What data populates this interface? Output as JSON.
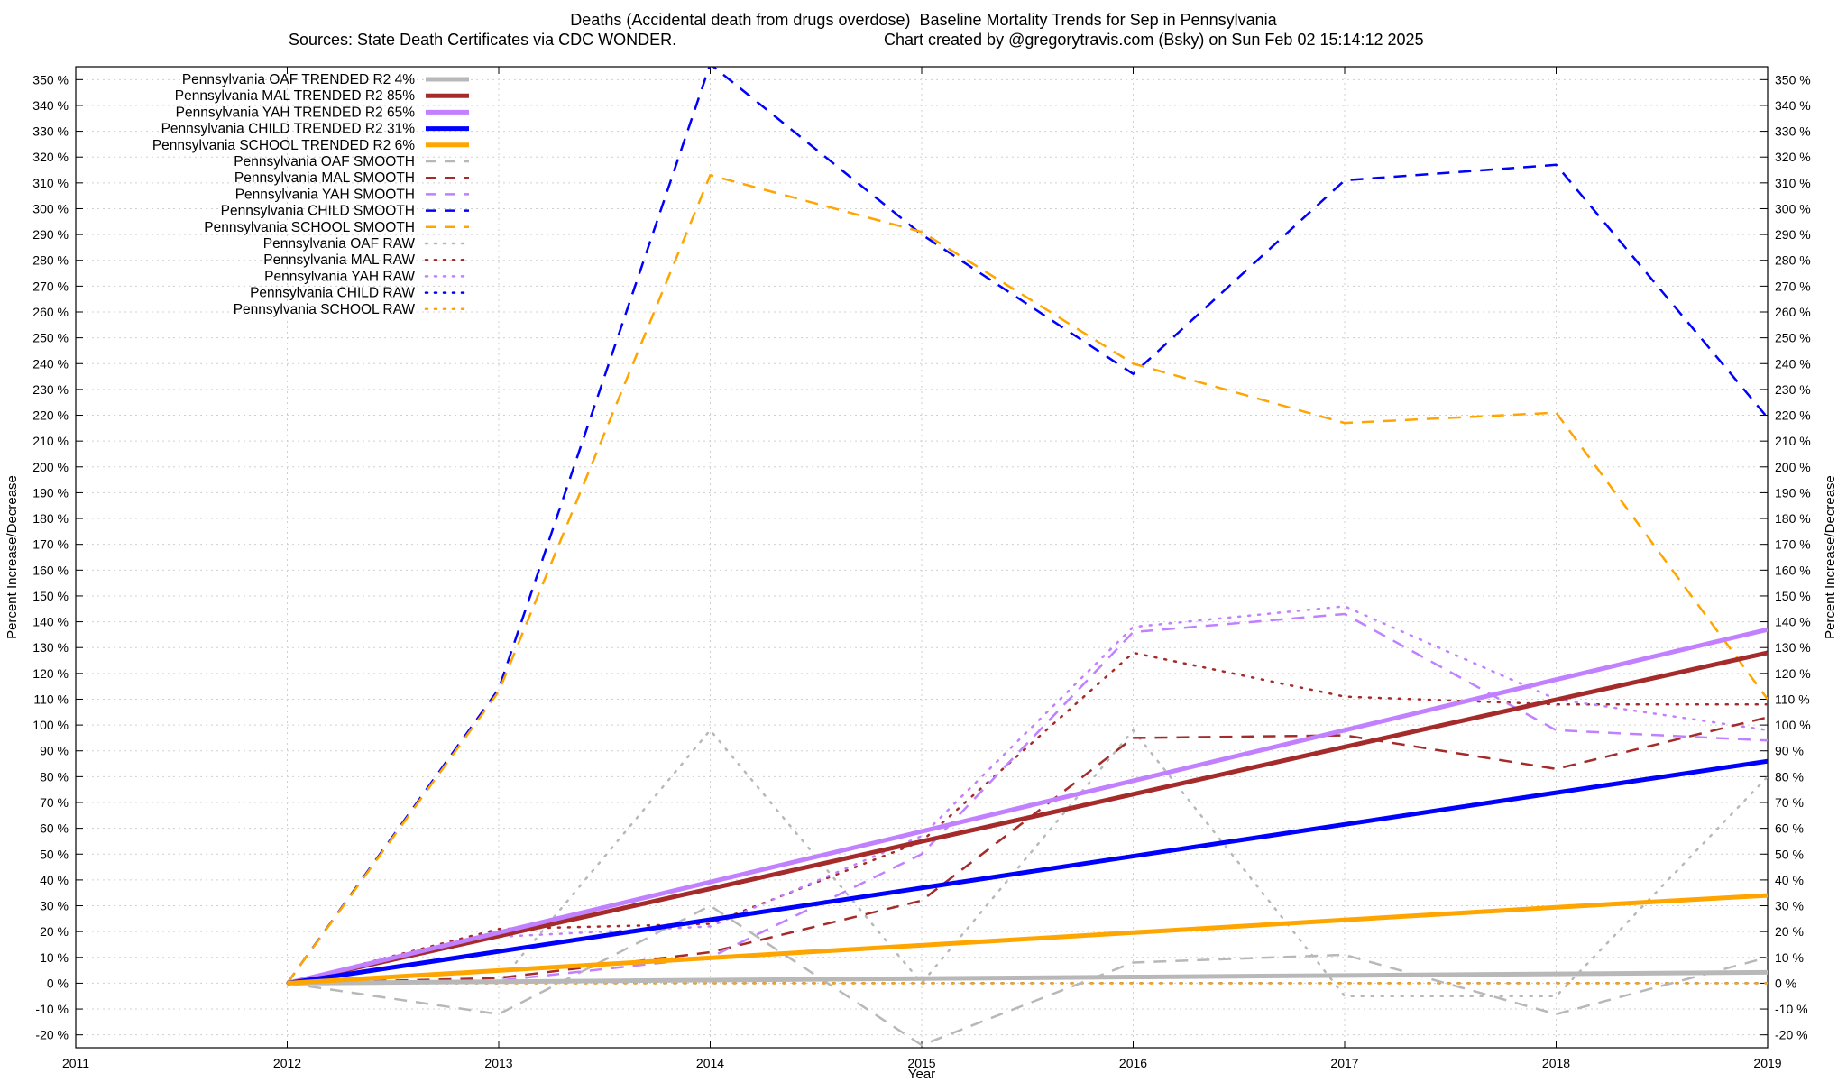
{
  "chart_data": {
    "type": "line",
    "title": "Deaths (Accidental death from drugs overdose)  Baseline Mortality Trends for Sep in Pennsylvania",
    "subtitle_left": "Sources: State Death Certificates via CDC WONDER.",
    "subtitle_right": "Chart created by @gregorytravis.com (Bsky) on Sun Feb 02 15:14:12 2025",
    "xlabel": "Year",
    "ylabel": "Percent Increase/Decrease",
    "y2label": "Percent Increase/Decrease",
    "xlim": [
      2011,
      2019
    ],
    "ylim": [
      -25,
      355
    ],
    "x_ticks": [
      "2011",
      "2012",
      "2013",
      "2014",
      "2015",
      "2016",
      "2017",
      "2018",
      "2019"
    ],
    "y_ticks": [
      -20,
      -10,
      0,
      10,
      20,
      30,
      40,
      50,
      60,
      70,
      80,
      90,
      100,
      110,
      120,
      130,
      140,
      150,
      160,
      170,
      180,
      190,
      200,
      210,
      220,
      230,
      240,
      250,
      260,
      270,
      280,
      290,
      300,
      310,
      320,
      330,
      340,
      350
    ],
    "y_tick_suffix": " %",
    "grid": true,
    "legend_position": "top-left",
    "x": [
      2012,
      2013,
      2014,
      2015,
      2016,
      2017,
      2018,
      2019
    ],
    "series": [
      {
        "name": "Pennsylvania OAF TRENDED R2   4%",
        "style": "solid",
        "color": "#b8b8b8",
        "width": 5,
        "values": [
          0,
          0.6,
          1.2,
          1.8,
          2.4,
          3.0,
          3.6,
          4.2
        ]
      },
      {
        "name": "Pennsylvania MAL TRENDED R2  85%",
        "style": "solid",
        "color": "#a52a2a",
        "width": 5,
        "values": [
          0,
          18.3,
          36.6,
          54.9,
          73.2,
          91.5,
          109.8,
          128
        ]
      },
      {
        "name": "Pennsylvania YAH TRENDED R2  65%",
        "style": "solid",
        "color": "#c080ff",
        "width": 5,
        "values": [
          0,
          19.6,
          39.2,
          58.8,
          78.4,
          98.0,
          117.6,
          137
        ]
      },
      {
        "name": "Pennsylvania CHILD TRENDED R2  31%",
        "style": "solid",
        "color": "#0000ff",
        "width": 5,
        "values": [
          0,
          12.3,
          24.6,
          36.9,
          49.2,
          61.5,
          73.8,
          86
        ]
      },
      {
        "name": "Pennsylvania SCHOOL TRENDED R2   6%",
        "style": "solid",
        "color": "#ffa500",
        "width": 5,
        "values": [
          0,
          4.9,
          9.8,
          14.7,
          19.6,
          24.5,
          29.4,
          34
        ]
      },
      {
        "name": "Pennsylvania OAF SMOOTH",
        "style": "dash",
        "color": "#b8b8b8",
        "width": 2.5,
        "values": [
          0,
          -12,
          30,
          -24,
          8,
          11,
          -12,
          10
        ]
      },
      {
        "name": "Pennsylvania MAL SMOOTH",
        "style": "dash",
        "color": "#a52a2a",
        "width": 2.5,
        "values": [
          0,
          2,
          12,
          32,
          95,
          96,
          83,
          103
        ]
      },
      {
        "name": "Pennsylvania YAH SMOOTH",
        "style": "dash",
        "color": "#c080ff",
        "width": 2.5,
        "values": [
          0,
          1,
          10,
          50,
          136,
          143,
          98,
          94
        ]
      },
      {
        "name": "Pennsylvania CHILD SMOOTH",
        "style": "dash",
        "color": "#0000ff",
        "width": 2.5,
        "values": [
          0,
          114,
          356,
          290,
          236,
          311,
          317,
          219
        ]
      },
      {
        "name": "Pennsylvania SCHOOL SMOOTH",
        "style": "dash",
        "color": "#ffa500",
        "width": 2.5,
        "values": [
          0,
          113,
          313,
          291,
          240,
          217,
          221,
          110
        ]
      },
      {
        "name": "Pennsylvania OAF RAW",
        "style": "dot",
        "color": "#b8b8b8",
        "width": 2.5,
        "values": [
          0,
          0,
          98,
          0,
          98,
          -5,
          -5,
          80
        ]
      },
      {
        "name": "Pennsylvania MAL RAW",
        "style": "dot",
        "color": "#a52a2a",
        "width": 2.5,
        "values": [
          0,
          21,
          23,
          55,
          128,
          111,
          108,
          108
        ]
      },
      {
        "name": "Pennsylvania YAH RAW",
        "style": "dot",
        "color": "#c080ff",
        "width": 2.5,
        "values": [
          0,
          18,
          22,
          57,
          138,
          146,
          110,
          98
        ]
      },
      {
        "name": "Pennsylvania CHILD RAW",
        "style": "dot",
        "color": "#0000ff",
        "width": 2.5,
        "values": [
          0,
          0,
          0,
          0,
          0,
          0,
          0,
          0
        ]
      },
      {
        "name": "Pennsylvania SCHOOL RAW",
        "style": "dot",
        "color": "#ffa500",
        "width": 2.5,
        "values": [
          0,
          0,
          0,
          0,
          0,
          0,
          0,
          0
        ]
      }
    ]
  }
}
